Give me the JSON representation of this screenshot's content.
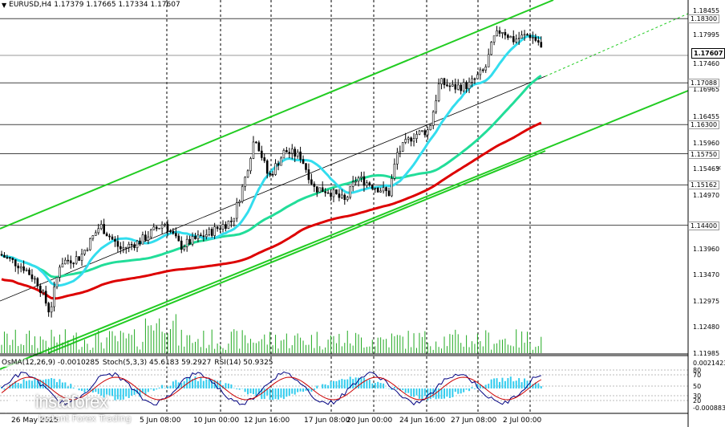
{
  "header": {
    "symbol": "EURUSD,H4",
    "ohlc": "1.17379 1.17665 1.17334 1.17607"
  },
  "price_axis": {
    "ticks": [
      "1.18455",
      "1.17995",
      "1.17460",
      "1.16965",
      "1.16455",
      "1.15960",
      "1.15465",
      "1.14970",
      "1.13960",
      "1.13470",
      "1.12975",
      "1.12480",
      "1.11985"
    ],
    "level_labels": [
      "1.18300",
      "1.17088",
      "1.16300",
      "1.15750",
      "1.15162",
      "1.14400"
    ],
    "current_price": "1.17607"
  },
  "oscillator": {
    "osma": "OsMA(12,26,9) -0.0010285",
    "stoch": "Stoch(5,3,3) 45.6183 59.2927",
    "rsi": "RSI(14) 50.9325",
    "ticks": [
      "0.0021423",
      "80",
      "70",
      "50",
      "30",
      "20",
      "-0.0008833"
    ]
  },
  "time_axis": [
    "26 May 2025",
    "5 Jun 08:00",
    "10 Jun 00:00",
    "12 Jun 16:00",
    "17 Jun 08:00",
    "20 Jun 00:00",
    "24 Jun 16:00",
    "27 Jun 08:00",
    "2 Jul 00:00"
  ],
  "watermark": {
    "brand": "instaforex",
    "tagline": "Instant Forex Trading"
  },
  "colors": {
    "candle": "#000000",
    "channel": "#22cc22",
    "ma_fast": "#33ddee",
    "ma_mid": "#22dd99",
    "ma_slow": "#dd0000",
    "level": "#444444",
    "volume": "#22aa22",
    "histogram": "#33ccee",
    "stoch_main": "#000080",
    "stoch_signal": "#cc0000"
  }
}
